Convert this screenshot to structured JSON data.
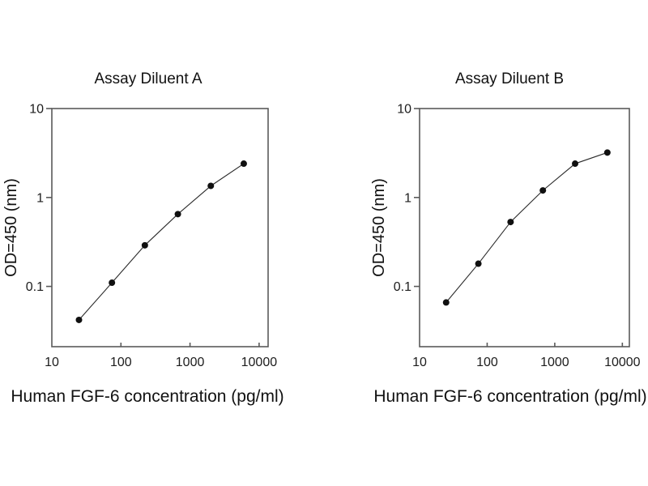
{
  "figure": {
    "background": "#ffffff",
    "text_color": "#111111",
    "axis_color": "#5a5a5a",
    "marker_color": "#101010"
  },
  "chart_data": [
    {
      "type": "scatter",
      "title": "Assay Diluent A",
      "xlabel": "Human FGF-6 concentration (pg/ml)",
      "ylabel": "OD=450 (nm)",
      "x_scale": "log",
      "y_scale": "log",
      "grid": false,
      "legend": false,
      "marker": "filled-circle",
      "x_ticks": [
        10,
        100,
        1000,
        10000
      ],
      "y_ticks": [
        10,
        1,
        0.1
      ],
      "xlim": [
        10,
        13500
      ],
      "ylim": [
        0.021,
        10
      ],
      "x": [
        24.7,
        74.1,
        222,
        667,
        2000,
        6000
      ],
      "y": [
        0.042,
        0.11,
        0.29,
        0.65,
        1.35,
        2.4
      ]
    },
    {
      "type": "scatter",
      "title": "Assay Diluent B",
      "xlabel": "Human FGF-6 concentration (pg/ml)",
      "ylabel": "OD=450 (nm)",
      "x_scale": "log",
      "y_scale": "log",
      "grid": false,
      "legend": false,
      "marker": "filled-circle",
      "x_ticks": [
        10,
        100,
        1000,
        10000
      ],
      "y_ticks": [
        10,
        1,
        0.1
      ],
      "xlim": [
        10,
        12700
      ],
      "ylim": [
        0.021,
        10
      ],
      "x": [
        24.7,
        74.1,
        222,
        667,
        2000,
        6000
      ],
      "y": [
        0.066,
        0.18,
        0.53,
        1.2,
        2.4,
        3.2
      ]
    }
  ]
}
